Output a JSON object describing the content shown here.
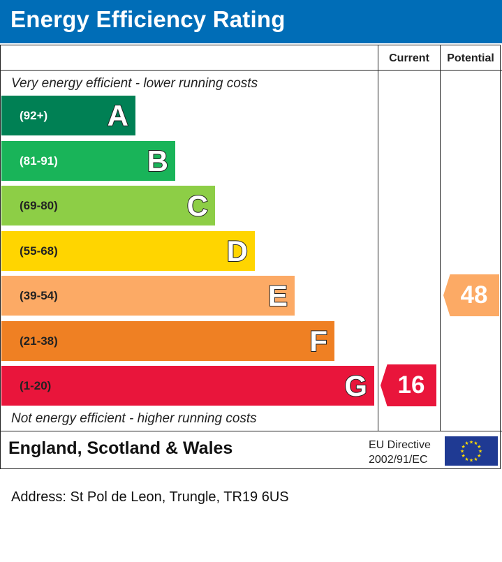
{
  "header": {
    "title": "Energy Efficiency Rating"
  },
  "columns": {
    "current": "Current",
    "potential": "Potential"
  },
  "notes": {
    "top": "Very energy efficient - lower running costs",
    "bottom": "Not energy efficient - higher running costs"
  },
  "chart_data": {
    "type": "bar",
    "title": "Energy Efficiency Rating",
    "bands": [
      {
        "letter": "A",
        "range": "(92+)",
        "color": "#008054"
      },
      {
        "letter": "B",
        "range": "(81-91)",
        "color": "#19b459"
      },
      {
        "letter": "C",
        "range": "(69-80)",
        "color": "#8dce46"
      },
      {
        "letter": "D",
        "range": "(55-68)",
        "color": "#ffd500"
      },
      {
        "letter": "E",
        "range": "(39-54)",
        "color": "#fcaa65"
      },
      {
        "letter": "F",
        "range": "(21-38)",
        "color": "#ef8023"
      },
      {
        "letter": "G",
        "range": "(1-20)",
        "color": "#e9153b"
      }
    ],
    "current": {
      "value": 16,
      "band": "G",
      "color": "#e9153b"
    },
    "potential": {
      "value": 48,
      "band": "E",
      "color": "#fcaa65"
    }
  },
  "footer": {
    "country": "England, Scotland & Wales",
    "directive_line1": "EU Directive",
    "directive_line2": "2002/91/EC"
  },
  "address": "Address: St Pol de Leon, Trungle, TR19 6US"
}
